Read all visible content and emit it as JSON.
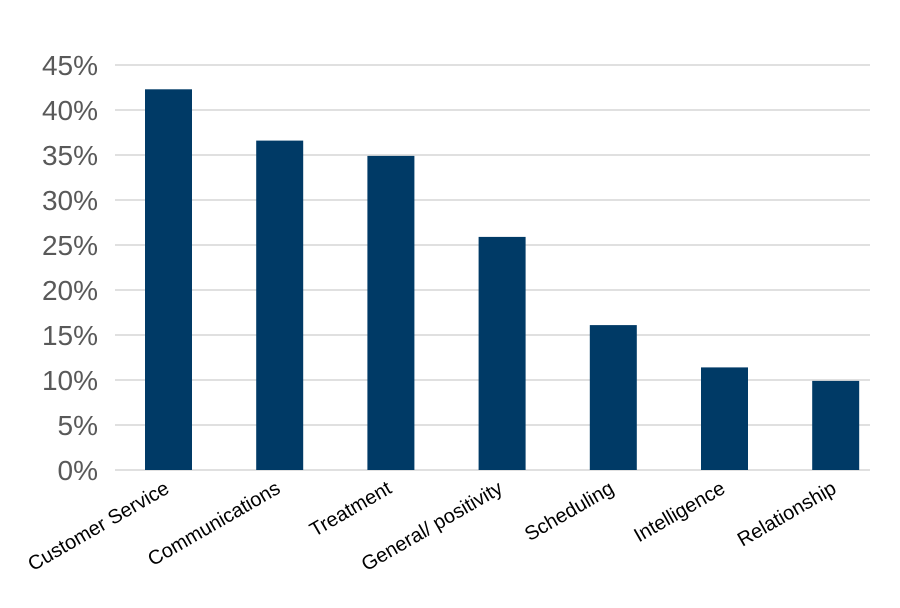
{
  "chart_data": {
    "type": "bar",
    "title": "",
    "xlabel": "",
    "ylabel": "",
    "categories": [
      "Customer Service",
      "Communications",
      "Treatment",
      "General/ positivity",
      "Scheduling",
      "Intelligence",
      "Relationship"
    ],
    "values": [
      42.3,
      36.6,
      34.9,
      25.9,
      16.1,
      11.4,
      9.9
    ],
    "ylim": [
      0,
      45
    ],
    "yticks": [
      0,
      5,
      10,
      15,
      20,
      25,
      30,
      35,
      40,
      45
    ],
    "ytick_labels": [
      "0%",
      "5%",
      "10%",
      "15%",
      "20%",
      "25%",
      "30%",
      "35%",
      "40%",
      "45%"
    ],
    "grid": true,
    "legend": "none",
    "colors": {
      "bar": "#003a66",
      "grid": "#c0c0c0",
      "text": "#595959"
    }
  }
}
